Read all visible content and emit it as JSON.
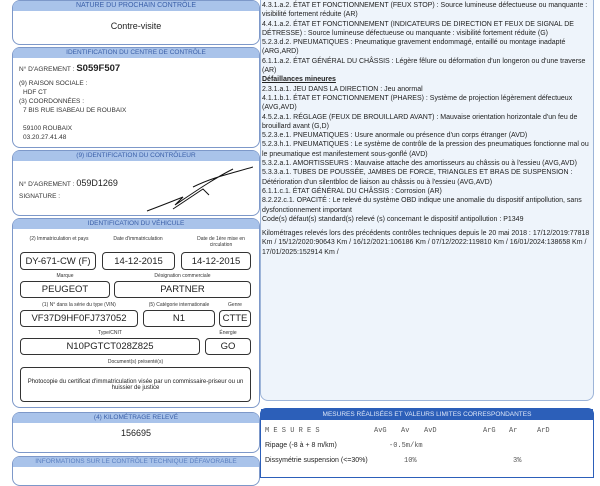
{
  "left": {
    "next_control": {
      "header": "NATURE DU PROCHAIN CONTRÔLE",
      "value": "Contre-visite"
    },
    "centre": {
      "header": "IDENTIFICATION DU CENTRE DE CONTRÔLE",
      "agrement_label": "N° D'AGREMENT :",
      "agrement": "S059F507",
      "raison_label": "(9) RAISON SOCIALE :",
      "raison": "HDF CT",
      "coord_label": "(3) COORDONNÉES :",
      "address": "7 BIS RUE ISABEAU DE ROUBAIX",
      "city": "59100 ROUBAIX",
      "phone": "03.20.27.41.48"
    },
    "controleur": {
      "header": "(9) IDENTIFICATION DU CONTRÔLEUR",
      "agrement_label": "N° D'AGREMENT :",
      "agrement": "059D1269",
      "signature_label": "SIGNATURE :"
    },
    "vehicule": {
      "header": "IDENTIFICATION DU VÉHICULE",
      "immat_label": "(2) Immatriculation et pays",
      "immat": "DY-671-CW (F)",
      "date_immat_label": "Date d'immatriculation",
      "date_immat": "14-12-2015",
      "date_mec_label": "Date de 1ère mise en circulation",
      "date_mec": "14-12-2015",
      "marque_label": "Marque",
      "marque": "PEUGEOT",
      "designation_label": "Désignation commerciale",
      "designation": "PARTNER",
      "vin_label": "(1) N° dans la série du type (VIN)",
      "vin": "VF37D9HF0FJ737052",
      "categorie_label": "(5) Catégorie internationale",
      "categorie": "N1",
      "genre_label": "Genre",
      "genre": "CTTE",
      "type_label": "Type/CNIT",
      "type": "N10PGTCT028Z825",
      "energie_label": "Énergie",
      "energie": "GO",
      "docs_label": "Document(s) présenté(s)",
      "docs": "Photocopie du certificat d'immatriculation visée par un commissaire-priseur ou un huissier de justice"
    },
    "km": {
      "header": "(4) KILOMÉTRAGE RELEVÉ",
      "value": "156695"
    },
    "defavorable": {
      "header": "INFORMATIONS SUR LE CONTRÔLE TECHNIQUE DÉFAVORABLE"
    }
  },
  "right": {
    "lines": [
      "4.3.1.a.2. ÉTAT ET FONCTIONNEMENT (FEUX STOP) : Source lumineuse défectueuse ou manquante : visibilité fortement réduite (AR)",
      "4.4.1.a.2. ÉTAT ET FONCTIONNEMENT (INDICATEURS DE DIRECTION ET FEUX DE SIGNAL DE DÉTRESSE) : Source lumineuse défectueuse ou manquante : visibilité fortement réduite (G)",
      "5.2.3.d.2. PNEUMATIQUES : Pneumatique gravement endommagé, entaillé ou montage inadapté (ARG,ARD)",
      "6.1.1.a.2. ÉTAT GÉNÉRAL DU CHÂSSIS : Légère fêlure ou déformation d'un longeron ou d'une traverse (AR)"
    ],
    "minor_title": "Défaillances mineures",
    "minor": [
      "2.3.1.a.1. JEU DANS LA DIRECTION : Jeu anormal",
      "4.1.1.b.1. ÉTAT ET FONCTIONNEMENT (PHARES) : Système de projection légèrement défectueux (AVG,AVD)",
      "4.5.2.a.1. RÉGLAGE (FEUX DE BROUILLARD AVANT) : Mauvaise orientation horizontale d'un feu de brouillard avant (G,D)",
      "5.2.3.e.1. PNEUMATIQUES : Usure anormale ou présence d'un corps étranger (AVD)",
      "5.2.3.h.1. PNEUMATIQUES : Le système de contrôle de la pression des pneumatiques fonctionne mal ou le pneumatique est manifestement sous-gonflé (AVD)",
      "5.3.2.a.1. AMORTISSEURS : Mauvaise attache des amortisseurs au châssis ou à l'essieu (AVG,AVD)",
      "5.3.3.a.1. TUBES DE POUSSÉE, JAMBES DE FORCE, TRIANGLES ET BRAS DE SUSPENSION : Détérioration d'un silentbloc de liaison au châssis ou à l'essieu (AVG,AVD)",
      "6.1.1.c.1. ÉTAT GÉNÉRAL DU CHÂSSIS : Corrosion (AR)",
      "8.2.22.c.1. OPACITÉ : Le relevé du système OBD indique une anomalie du dispositif antipollution, sans dysfonctionnement important",
      "Code(s) défaut(s) standard(s) relevé (s) concernant le dispositif antipollution : P1349"
    ],
    "km_history": "Kilométrages relevés lors des précédents contrôles techniques depuis le 20 mai 2018 : 17/12/2019:77818 Km / 15/12/2020:90643 Km / 16/12/2021:106186 Km / 07/12/2022:119810 Km / 16/01/2024:138658 Km / 17/01/2025:152914 Km /",
    "mesures": {
      "header": "MESURES RÉALISÉES ET VALEURS LIMITES CORRESPONDANTES",
      "cols": [
        "M E S U R E S",
        "AvG",
        "Av",
        "AvD",
        "ArG",
        "Ar",
        "ArD"
      ],
      "rows": [
        {
          "label": "Ripage (-8 à + 8 m/km)",
          "av": "-0.5m/km",
          "ar": ""
        },
        {
          "label": "Dissymétrie suspension (<=30%)",
          "av": "10%",
          "ar": "3%"
        }
      ]
    }
  }
}
